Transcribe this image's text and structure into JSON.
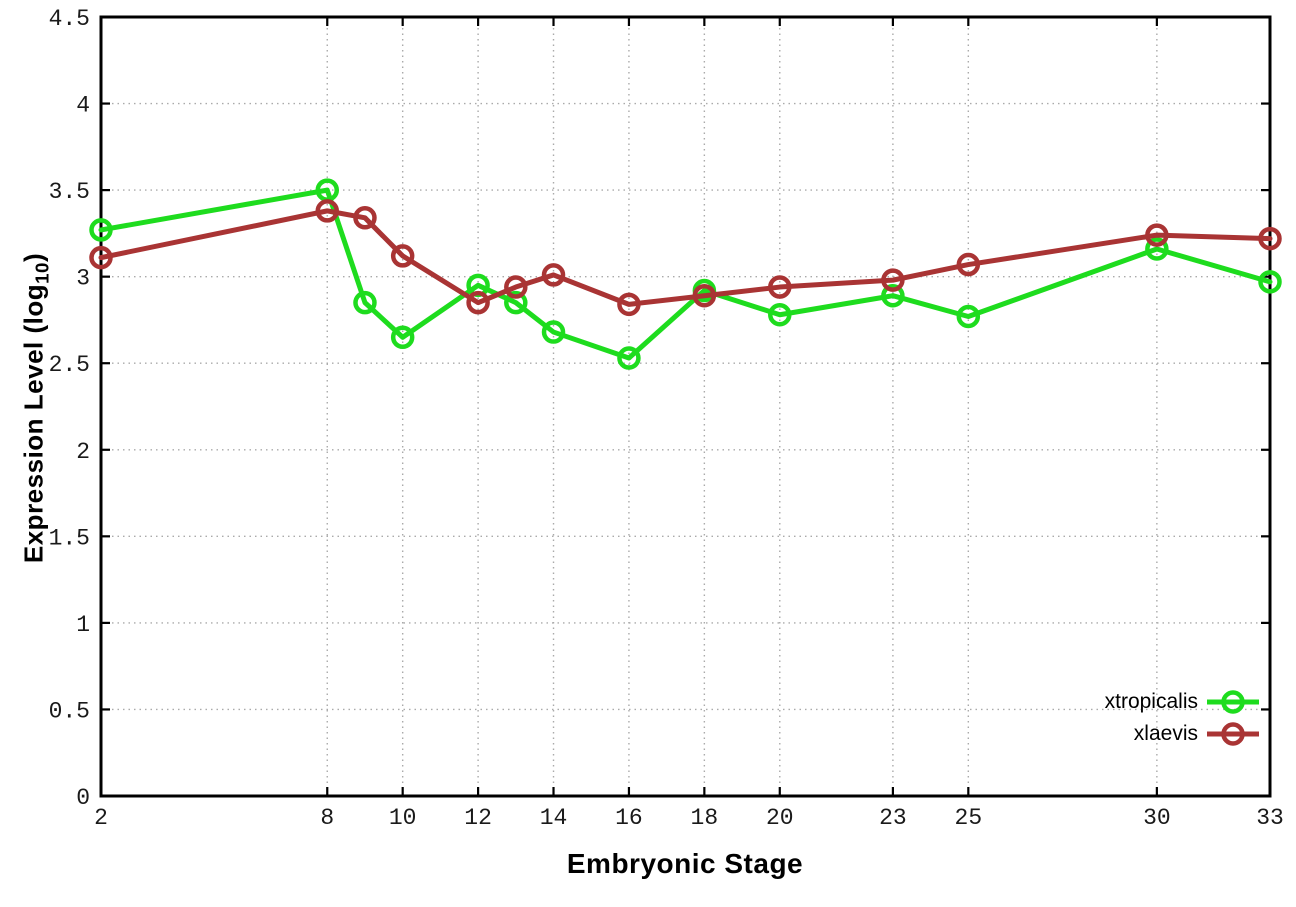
{
  "chart_data": {
    "type": "line",
    "title": "",
    "xlabel": "Embryonic Stage",
    "ylabel": "Expression Level (log10)",
    "ylabel_parts": {
      "main": "Expression Level (log",
      "sub": "10",
      "close": ")"
    },
    "xlim": [
      2,
      33
    ],
    "ylim": [
      0,
      4.5
    ],
    "grid": true,
    "legend_position": "bottom-right-inside",
    "x_ticks": [
      2,
      8,
      10,
      12,
      14,
      16,
      18,
      20,
      23,
      25,
      30,
      33
    ],
    "x_tick_labels": [
      "2",
      "8",
      "10",
      "12",
      "14",
      "16",
      "18",
      "20",
      "23",
      "25",
      "30",
      "33"
    ],
    "y_ticks": [
      0,
      0.5,
      1,
      1.5,
      2,
      2.5,
      3,
      3.5,
      4,
      4.5
    ],
    "y_tick_labels": [
      "0",
      "0.5",
      "1",
      "1.5",
      "2",
      "2.5",
      "3",
      "3.5",
      "4",
      "4.5"
    ],
    "x": [
      2,
      8,
      9,
      10,
      12,
      13,
      14,
      16,
      18,
      20,
      23,
      25,
      30,
      33
    ],
    "series": [
      {
        "name": "xtropicalis",
        "color": "#1edc1e",
        "marker": "open-circle",
        "values": [
          3.27,
          3.5,
          2.85,
          2.65,
          2.95,
          2.85,
          2.68,
          2.53,
          2.92,
          2.78,
          2.89,
          2.77,
          3.16,
          2.97
        ]
      },
      {
        "name": "xlaevis",
        "color": "#a93434",
        "marker": "open-circle",
        "values": [
          3.11,
          3.38,
          3.34,
          3.12,
          2.85,
          2.94,
          3.01,
          2.84,
          2.89,
          2.94,
          2.98,
          3.07,
          3.24,
          3.22
        ]
      }
    ],
    "colors": {
      "grid": "#aaaaaa",
      "border": "#000000",
      "tick_text": "#1a1a1a"
    }
  }
}
